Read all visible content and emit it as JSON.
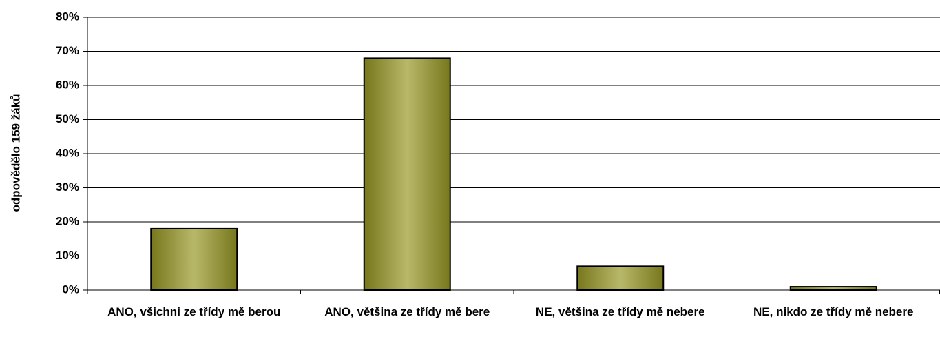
{
  "chart_data": {
    "type": "bar",
    "y_label": "odpovědělo 159 žáků",
    "categories": [
      "ANO, všichni ze třídy mě berou",
      "ANO, většina ze třídy mě bere",
      "NE, většina ze třídy mě nebere",
      "NE, nikdo ze třídy mě nebere"
    ],
    "values": [
      18,
      68,
      7,
      1
    ],
    "color": "#8a8a2a",
    "ylim": [
      0,
      80
    ],
    "yticks": [
      {
        "value": 0,
        "label": "0%"
      },
      {
        "value": 10,
        "label": "10%"
      },
      {
        "value": 20,
        "label": "20%"
      },
      {
        "value": 30,
        "label": "30%"
      },
      {
        "value": 40,
        "label": "40%"
      },
      {
        "value": 50,
        "label": "50%"
      },
      {
        "value": 60,
        "label": "60%"
      },
      {
        "value": 70,
        "label": "70%"
      },
      {
        "value": 80,
        "label": "80%"
      }
    ],
    "grid": true
  }
}
